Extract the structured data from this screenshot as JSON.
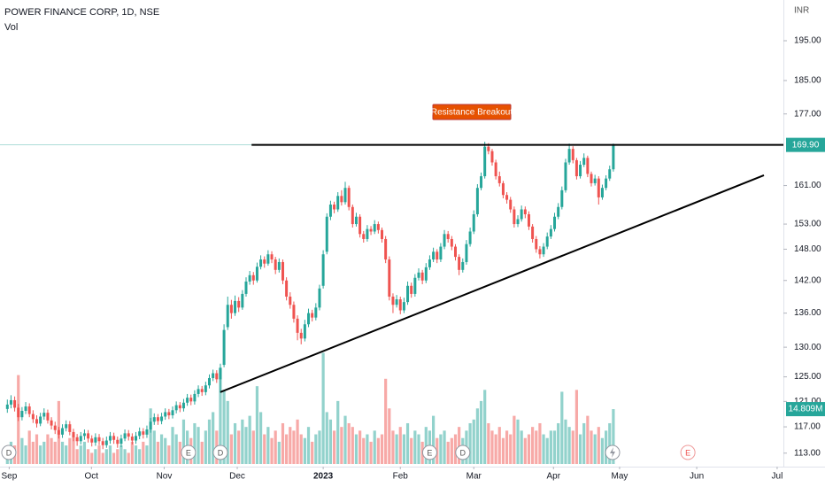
{
  "chart_data": {
    "type": "candlestick",
    "title": "POWER FINANCE CORP, 1D, NSE",
    "volume_title": "Vol",
    "currency": "INR",
    "annotation": "Resistance Breakout",
    "log_scale": true,
    "up_color": "#26a69a",
    "down_color": "#ef5350",
    "xlim": [
      -2,
      211.3
    ],
    "ylim": [
      111,
      200
    ],
    "volume_ylim": [
      0,
      60
    ],
    "xticks": [
      {
        "value": 0.5,
        "label": "Sep"
      },
      {
        "value": 22.9,
        "label": "Oct"
      },
      {
        "value": 42.7,
        "label": "Nov"
      },
      {
        "value": 62.6,
        "label": "Dec"
      },
      {
        "value": 86,
        "label": "2023"
      },
      {
        "value": 107,
        "label": "Feb"
      },
      {
        "value": 127,
        "label": "Mar"
      },
      {
        "value": 148.7,
        "label": "Apr"
      },
      {
        "value": 166.7,
        "label": "May"
      },
      {
        "value": 187.7,
        "label": "Jun"
      },
      {
        "value": 209.6,
        "label": "Jul"
      }
    ],
    "yticks": [
      {
        "value": 195,
        "label": "195.00"
      },
      {
        "value": 185,
        "label": "185.00"
      },
      {
        "value": 177,
        "label": "177.00"
      },
      {
        "value": 161,
        "label": "161.00"
      },
      {
        "value": 153,
        "label": "153.00"
      },
      {
        "value": 148,
        "label": "148.00"
      },
      {
        "value": 142,
        "label": "142.00"
      },
      {
        "value": 136,
        "label": "136.00"
      },
      {
        "value": 130,
        "label": "130.00"
      },
      {
        "value": 125,
        "label": "125.00"
      },
      {
        "value": 121,
        "label": "121.00"
      },
      {
        "value": 117,
        "label": "117.00"
      },
      {
        "value": 113,
        "label": "113.00"
      }
    ],
    "price_label": "169.90",
    "volume_label": "14.809M",
    "ohlc": [
      [
        119.8,
        121.3,
        119.2,
        120.5
      ],
      [
        120.5,
        122.0,
        119.9,
        121.2
      ],
      [
        121.2,
        121.8,
        119.4,
        120.0
      ],
      [
        120.0,
        120.6,
        117.9,
        118.5
      ],
      [
        118.5,
        120.1,
        118.0,
        119.5
      ],
      [
        119.5,
        120.9,
        119.0,
        120.2
      ],
      [
        120.2,
        120.7,
        118.5,
        119.0
      ],
      [
        119.0,
        119.6,
        117.6,
        118.2
      ],
      [
        118.2,
        118.8,
        116.9,
        117.5
      ],
      [
        117.5,
        119.2,
        117.1,
        118.6
      ],
      [
        118.6,
        119.9,
        118.1,
        119.2
      ],
      [
        119.2,
        119.7,
        117.5,
        118.0
      ],
      [
        118.0,
        118.5,
        116.6,
        117.2
      ],
      [
        117.2,
        117.8,
        115.9,
        116.5
      ],
      [
        116.5,
        117.0,
        115.2,
        115.8
      ],
      [
        115.8,
        117.4,
        115.3,
        116.8
      ],
      [
        116.8,
        118.0,
        116.3,
        117.4
      ],
      [
        117.4,
        117.9,
        115.7,
        116.2
      ],
      [
        116.2,
        116.7,
        114.8,
        115.4
      ],
      [
        115.4,
        115.9,
        114.1,
        114.8
      ],
      [
        114.8,
        116.2,
        114.3,
        115.6
      ],
      [
        115.6,
        116.6,
        115.0,
        116.0
      ],
      [
        116.0,
        116.5,
        114.6,
        115.2
      ],
      [
        115.2,
        115.7,
        114.0,
        114.6
      ],
      [
        114.6,
        116.0,
        114.1,
        115.4
      ],
      [
        115.4,
        115.9,
        114.2,
        114.8
      ],
      [
        114.8,
        115.3,
        113.6,
        114.2
      ],
      [
        114.2,
        115.5,
        113.8,
        114.9
      ],
      [
        114.9,
        116.2,
        114.4,
        115.6
      ],
      [
        115.6,
        116.1,
        114.4,
        115.0
      ],
      [
        115.0,
        115.5,
        113.8,
        114.4
      ],
      [
        114.4,
        115.8,
        113.9,
        115.2
      ],
      [
        115.2,
        116.6,
        114.8,
        116.0
      ],
      [
        116.0,
        116.5,
        114.9,
        115.5
      ],
      [
        115.5,
        116.0,
        114.3,
        114.9
      ],
      [
        114.9,
        116.2,
        114.4,
        115.6
      ],
      [
        115.6,
        116.9,
        115.1,
        116.3
      ],
      [
        116.3,
        116.8,
        115.2,
        115.8
      ],
      [
        115.8,
        117.2,
        115.3,
        116.6
      ],
      [
        116.6,
        118.4,
        116.1,
        117.8
      ],
      [
        117.8,
        119.1,
        117.3,
        118.5
      ],
      [
        118.5,
        119.0,
        117.3,
        117.9
      ],
      [
        117.9,
        119.2,
        117.4,
        118.6
      ],
      [
        118.6,
        119.9,
        118.1,
        119.3
      ],
      [
        119.3,
        119.8,
        118.2,
        118.8
      ],
      [
        118.8,
        120.2,
        118.3,
        119.6
      ],
      [
        119.6,
        121.0,
        119.1,
        120.4
      ],
      [
        120.4,
        120.9,
        119.3,
        119.9
      ],
      [
        119.9,
        121.4,
        119.4,
        120.8
      ],
      [
        120.8,
        122.2,
        120.3,
        121.6
      ],
      [
        121.6,
        122.1,
        120.4,
        121.0
      ],
      [
        121.0,
        122.8,
        120.5,
        122.2
      ],
      [
        122.2,
        123.6,
        121.7,
        123.0
      ],
      [
        123.0,
        123.5,
        121.9,
        122.5
      ],
      [
        122.5,
        124.2,
        122.0,
        123.6
      ],
      [
        123.6,
        125.4,
        123.1,
        124.8
      ],
      [
        124.8,
        126.2,
        124.3,
        125.6
      ],
      [
        125.6,
        126.1,
        124.0,
        124.6
      ],
      [
        124.6,
        127.2,
        122.4,
        126.5
      ],
      [
        127.0,
        134.0,
        126.6,
        133.0
      ],
      [
        133.5,
        139.0,
        133.0,
        137.5
      ],
      [
        137.5,
        138.4,
        135.0,
        136.0
      ],
      [
        136.0,
        139.2,
        135.5,
        138.2
      ],
      [
        138.2,
        138.9,
        136.2,
        137.0
      ],
      [
        137.0,
        140.2,
        136.6,
        139.5
      ],
      [
        139.5,
        142.6,
        139.0,
        141.8
      ],
      [
        141.8,
        143.8,
        141.2,
        143.0
      ],
      [
        143.0,
        143.6,
        141.2,
        142.0
      ],
      [
        142.0,
        145.4,
        141.6,
        144.6
      ],
      [
        144.6,
        146.8,
        144.1,
        146.0
      ],
      [
        146.0,
        146.6,
        144.4,
        145.2
      ],
      [
        145.2,
        147.8,
        144.8,
        147.0
      ],
      [
        147.0,
        147.6,
        145.3,
        146.0
      ],
      [
        146.0,
        146.5,
        143.2,
        144.0
      ],
      [
        144.0,
        146.2,
        143.5,
        145.5
      ],
      [
        145.5,
        146.0,
        141.3,
        142.0
      ],
      [
        142.0,
        142.6,
        138.3,
        139.0
      ],
      [
        139.0,
        139.8,
        136.8,
        137.5
      ],
      [
        137.5,
        138.1,
        134.3,
        135.0
      ],
      [
        135.0,
        135.6,
        131.2,
        132.5
      ],
      [
        132.5,
        133.2,
        130.5,
        131.5
      ],
      [
        131.5,
        134.8,
        131.0,
        134.0
      ],
      [
        134.0,
        136.8,
        133.5,
        136.0
      ],
      [
        136.0,
        136.6,
        134.5,
        135.2
      ],
      [
        135.2,
        137.8,
        134.7,
        137.0
      ],
      [
        137.0,
        141.2,
        136.5,
        140.5
      ],
      [
        141.0,
        147.8,
        140.5,
        147.0
      ],
      [
        147.5,
        155.2,
        147.0,
        154.5
      ],
      [
        154.5,
        157.8,
        153.8,
        157.0
      ],
      [
        157.0,
        157.6,
        155.2,
        156.0
      ],
      [
        156.0,
        159.6,
        155.5,
        158.8
      ],
      [
        158.8,
        160.0,
        156.8,
        157.5
      ],
      [
        157.5,
        161.8,
        157.0,
        160.5
      ],
      [
        160.5,
        161.0,
        155.8,
        156.5
      ],
      [
        156.5,
        157.0,
        152.3,
        153.0
      ],
      [
        153.0,
        155.3,
        152.5,
        154.5
      ],
      [
        154.5,
        155.0,
        150.3,
        151.0
      ],
      [
        151.0,
        151.6,
        149.3,
        150.0
      ],
      [
        150.0,
        152.8,
        149.5,
        152.0
      ],
      [
        152.0,
        152.6,
        150.8,
        151.5
      ],
      [
        151.5,
        153.8,
        151.0,
        153.0
      ],
      [
        153.0,
        153.5,
        151.1,
        151.8
      ],
      [
        151.8,
        152.3,
        149.3,
        150.0
      ],
      [
        150.0,
        150.6,
        145.3,
        146.0
      ],
      [
        146.0,
        146.6,
        138.3,
        139.0
      ],
      [
        139.0,
        139.6,
        136.0,
        137.5
      ],
      [
        137.5,
        139.3,
        137.0,
        138.5
      ],
      [
        138.5,
        139.0,
        135.8,
        136.5
      ],
      [
        136.5,
        138.8,
        136.0,
        138.0
      ],
      [
        138.0,
        141.8,
        137.5,
        141.0
      ],
      [
        141.0,
        141.6,
        138.8,
        139.5
      ],
      [
        139.5,
        143.2,
        139.0,
        142.5
      ],
      [
        142.5,
        144.3,
        142.0,
        143.5
      ],
      [
        143.5,
        144.0,
        141.3,
        142.0
      ],
      [
        142.0,
        145.3,
        141.5,
        144.5
      ],
      [
        144.5,
        146.8,
        144.0,
        146.0
      ],
      [
        146.0,
        148.3,
        145.5,
        147.5
      ],
      [
        147.5,
        148.0,
        145.3,
        146.0
      ],
      [
        146.0,
        149.2,
        145.5,
        148.5
      ],
      [
        148.5,
        151.8,
        148.0,
        151.0
      ],
      [
        151.0,
        151.6,
        149.3,
        150.0
      ],
      [
        150.0,
        150.6,
        147.8,
        148.5
      ],
      [
        148.5,
        149.0,
        145.8,
        146.5
      ],
      [
        146.5,
        147.0,
        143.0,
        144.0
      ],
      [
        144.0,
        146.2,
        143.5,
        145.5
      ],
      [
        145.5,
        149.8,
        145.0,
        149.0
      ],
      [
        149.0,
        152.3,
        148.5,
        151.5
      ],
      [
        151.5,
        155.8,
        151.0,
        155.0
      ],
      [
        155.0,
        161.3,
        154.5,
        160.5
      ],
      [
        160.5,
        163.8,
        160.0,
        163.0
      ],
      [
        163.0,
        170.6,
        162.5,
        169.5
      ],
      [
        169.5,
        170.3,
        167.8,
        168.5
      ],
      [
        168.5,
        169.0,
        165.3,
        166.0
      ],
      [
        166.0,
        166.6,
        162.3,
        163.0
      ],
      [
        163.0,
        164.0,
        160.8,
        161.5
      ],
      [
        161.5,
        162.0,
        158.3,
        159.0
      ],
      [
        159.0,
        159.6,
        157.2,
        158.0
      ],
      [
        158.0,
        158.6,
        155.3,
        156.0
      ],
      [
        156.0,
        156.6,
        152.3,
        153.0
      ],
      [
        153.0,
        154.8,
        152.4,
        154.0
      ],
      [
        154.0,
        156.8,
        153.5,
        156.0
      ],
      [
        156.0,
        156.6,
        154.2,
        155.0
      ],
      [
        155.0,
        155.6,
        151.8,
        152.5
      ],
      [
        152.5,
        153.0,
        149.3,
        150.0
      ],
      [
        150.0,
        150.6,
        147.3,
        148.0
      ],
      [
        148.0,
        148.6,
        146.2,
        147.0
      ],
      [
        147.0,
        149.2,
        146.5,
        148.5
      ],
      [
        148.5,
        151.3,
        148.0,
        150.5
      ],
      [
        150.5,
        152.8,
        150.0,
        152.0
      ],
      [
        152.0,
        155.3,
        151.5,
        154.5
      ],
      [
        154.5,
        157.3,
        154.0,
        156.5
      ],
      [
        156.5,
        160.8,
        156.0,
        160.0
      ],
      [
        160.0,
        166.8,
        159.5,
        166.0
      ],
      [
        166.0,
        170.2,
        165.5,
        169.0
      ],
      [
        169.0,
        169.6,
        165.8,
        166.5
      ],
      [
        166.5,
        167.0,
        162.3,
        163.0
      ],
      [
        163.0,
        166.3,
        162.5,
        165.5
      ],
      [
        165.5,
        168.0,
        165.0,
        167.0
      ],
      [
        167.0,
        167.5,
        162.8,
        163.5
      ],
      [
        163.5,
        164.0,
        160.8,
        161.5
      ],
      [
        161.5,
        163.3,
        161.0,
        162.5
      ],
      [
        162.5,
        163.0,
        157.0,
        158.5
      ],
      [
        158.5,
        161.2,
        158.0,
        160.5
      ],
      [
        160.5,
        163.2,
        160.0,
        162.5
      ],
      [
        162.5,
        165.3,
        162.0,
        164.5
      ],
      [
        164.5,
        170.2,
        164.0,
        169.9
      ]
    ],
    "volume": [
      4,
      6,
      5,
      24,
      7,
      5,
      9,
      6,
      8,
      5,
      6,
      8,
      7,
      6,
      17,
      6,
      5,
      7,
      8,
      4,
      5,
      6,
      4,
      3,
      4,
      5,
      3,
      4,
      5,
      3,
      4,
      5,
      4,
      3,
      6,
      5,
      4,
      6,
      5,
      15,
      9,
      6,
      8,
      7,
      5,
      10,
      8,
      6,
      12,
      9,
      7,
      11,
      10,
      6,
      9,
      12,
      14,
      9,
      26,
      20,
      17,
      8,
      11,
      9,
      12,
      10,
      13,
      9,
      21,
      14,
      8,
      10,
      7,
      9,
      6,
      11,
      8,
      10,
      9,
      12,
      8,
      7,
      10,
      6,
      8,
      9,
      30,
      14,
      12,
      9,
      17,
      10,
      13,
      11,
      10,
      8,
      9,
      7,
      8,
      6,
      9,
      7,
      8,
      23,
      15,
      9,
      8,
      10,
      8,
      11,
      7,
      9,
      8,
      6,
      10,
      9,
      13,
      7,
      8,
      9,
      6,
      7,
      8,
      10,
      7,
      9,
      11,
      12,
      15,
      17,
      20,
      11,
      9,
      8,
      10,
      7,
      9,
      8,
      13,
      12,
      9,
      7,
      8,
      10,
      9,
      11,
      8,
      7,
      9,
      9,
      11,
      19.5,
      12,
      10,
      9,
      20,
      8,
      11,
      13,
      9,
      8,
      10,
      7,
      9,
      11,
      14.809
    ],
    "lines": [
      {
        "points": [
          [
            58,
            122.5
          ],
          [
            206,
            163.2
          ]
        ]
      },
      {
        "points": [
          [
            66.5,
            169.9
          ],
          [
            211.3,
            169.9
          ]
        ]
      }
    ],
    "events": [
      {
        "x": 0.4,
        "label": "D"
      },
      {
        "x": 49.3,
        "label": "E"
      },
      {
        "x": 58,
        "label": "D"
      },
      {
        "x": 115,
        "label": "E"
      },
      {
        "x": 124,
        "label": "D"
      },
      {
        "x": 185.3,
        "label": "E"
      }
    ]
  }
}
